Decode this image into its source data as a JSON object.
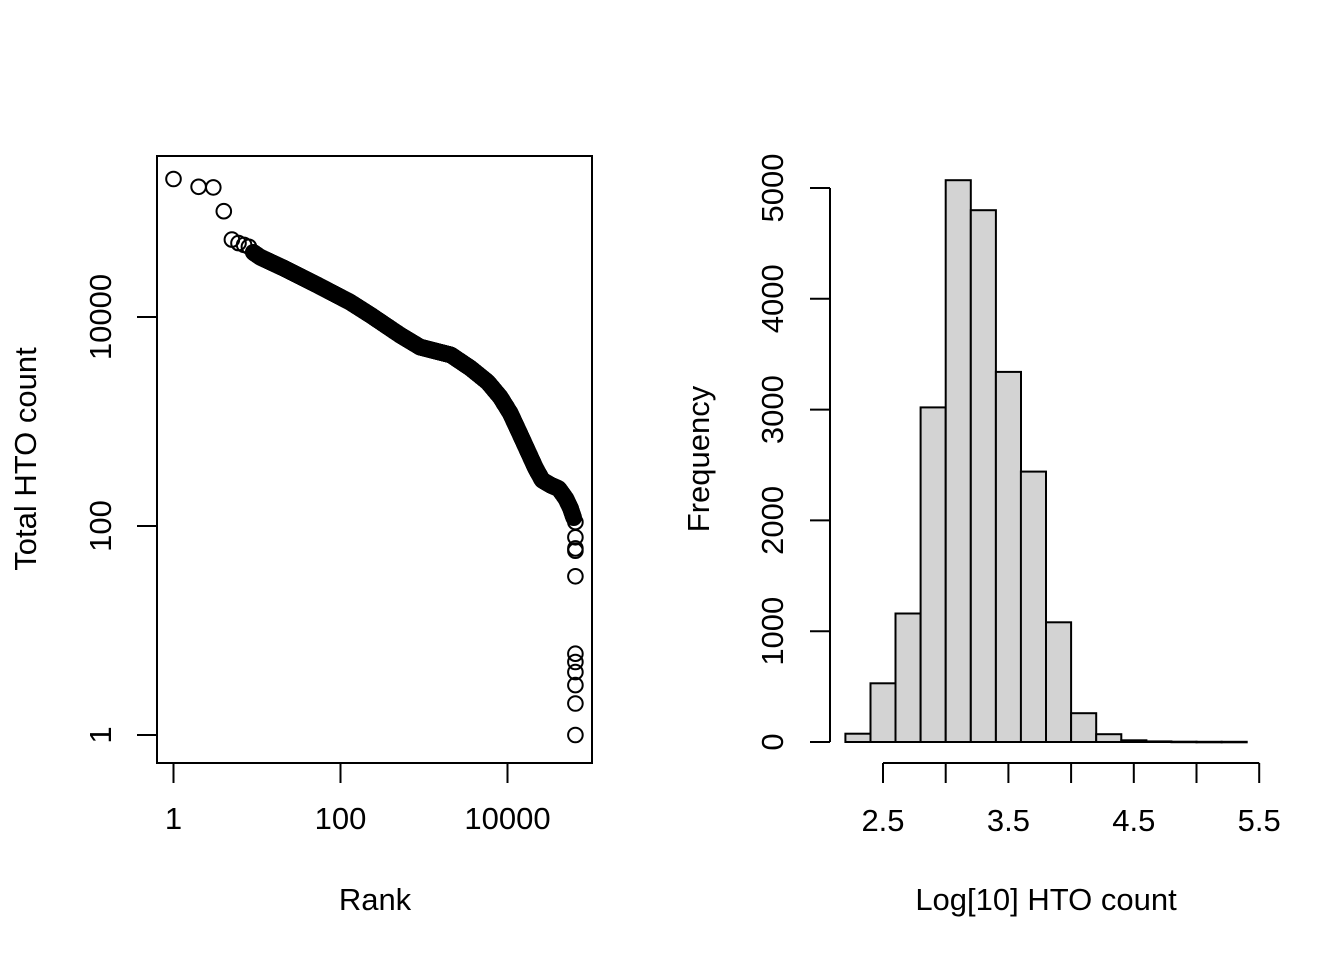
{
  "figure": {
    "background": "#ffffff",
    "foreground": "#000000",
    "bar_fill": "#d3d3d3",
    "marker": "open-circle"
  },
  "chart_data": [
    {
      "type": "scatter",
      "title": "",
      "xlabel": "Rank",
      "ylabel": "Total HTO count",
      "x_scale": "log10",
      "y_scale": "log10",
      "xlim": [
        1,
        100000
      ],
      "ylim": [
        1,
        350000
      ],
      "x_tick_values": [
        1,
        100,
        10000
      ],
      "x_tick_labels": [
        "1",
        "100",
        "10000"
      ],
      "y_tick_values": [
        1,
        100,
        10000
      ],
      "y_tick_labels": [
        "1",
        "100",
        "10000"
      ],
      "grid": false,
      "legend": "none",
      "top_points": [
        [
          1,
          209000
        ],
        [
          2,
          176000
        ],
        [
          3,
          174000
        ],
        [
          4,
          103000
        ],
        [
          5,
          55000
        ],
        [
          6,
          51000
        ],
        [
          7,
          49000
        ],
        [
          8,
          47000
        ]
      ],
      "curve_points": [
        [
          9,
          41600
        ],
        [
          11,
          37300
        ],
        [
          21,
          29300
        ],
        [
          53,
          20200
        ],
        [
          130,
          13900
        ],
        [
          230,
          10400
        ],
        [
          520,
          6700
        ],
        [
          900,
          5150
        ],
        [
          2100,
          4330
        ],
        [
          3600,
          3240
        ],
        [
          5800,
          2380
        ],
        [
          8200,
          1710
        ],
        [
          10800,
          1200
        ],
        [
          14300,
          740
        ],
        [
          17900,
          500
        ],
        [
          21600,
          360
        ],
        [
          26000,
          275
        ],
        [
          33000,
          246
        ],
        [
          41000,
          228
        ],
        [
          50000,
          183
        ],
        [
          57000,
          147
        ],
        [
          62000,
          120
        ]
      ],
      "tail_rank": 65000,
      "tail_counts": [
        109,
        78,
        61,
        58,
        33,
        6,
        5,
        4,
        3,
        2,
        1
      ]
    },
    {
      "type": "bar",
      "title": "",
      "xlabel": "Log[10] HTO count",
      "ylabel": "Frequency",
      "bin_start": 2.2,
      "bin_width": 0.2,
      "values": [
        75,
        530,
        1160,
        3020,
        5070,
        4800,
        3340,
        2440,
        1080,
        260,
        70,
        15,
        5,
        3,
        2,
        2
      ],
      "categories": [
        "2.2-2.4",
        "2.4-2.6",
        "2.6-2.8",
        "2.8-3.0",
        "3.0-3.2",
        "3.2-3.4",
        "3.4-3.6",
        "3.6-3.8",
        "3.8-4.0",
        "4.0-4.2",
        "4.2-4.4",
        "4.4-4.6",
        "4.6-4.8",
        "4.8-5.0",
        "5.0-5.2",
        "5.2-5.4"
      ],
      "xlim": [
        2.07,
        5.53
      ],
      "ylim": [
        0,
        5070
      ],
      "x_tick_values": [
        2.5,
        3.0,
        3.5,
        4.0,
        4.5,
        5.0,
        5.5
      ],
      "x_tick_labels": [
        "2.5",
        "",
        "3.5",
        "",
        "4.5",
        "",
        "5.5"
      ],
      "y_tick_values": [
        0,
        1000,
        2000,
        3000,
        4000,
        5000
      ],
      "y_tick_labels": [
        "0",
        "1000",
        "2000",
        "3000",
        "4000",
        "5000"
      ],
      "grid": false,
      "legend": "none"
    }
  ]
}
